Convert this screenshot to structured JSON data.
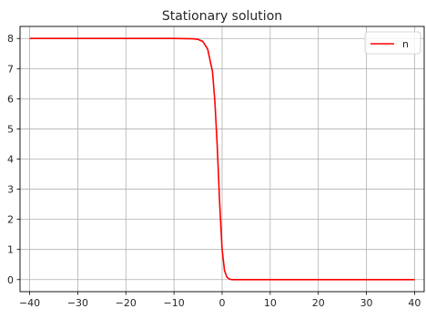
{
  "chart_data": {
    "type": "line",
    "title": "Stationary solution",
    "xlabel": "",
    "ylabel": "",
    "xlim": [
      -42,
      42
    ],
    "ylim": [
      -0.4,
      8.4
    ],
    "x_ticks": [
      -40,
      -30,
      -20,
      -10,
      0,
      10,
      20,
      30,
      40
    ],
    "x_tick_labels": [
      "−40",
      "−30",
      "−20",
      "−10",
      "0",
      "10",
      "20",
      "30",
      "40"
    ],
    "y_ticks": [
      0,
      1,
      2,
      3,
      4,
      5,
      6,
      7,
      8
    ],
    "y_tick_labels": [
      "0",
      "1",
      "2",
      "3",
      "4",
      "5",
      "6",
      "7",
      "8"
    ],
    "grid": true,
    "legend": "top-right",
    "series": [
      {
        "name": "n",
        "color": "#ff0000",
        "x": [
          -40,
          -30,
          -20,
          -10,
          -6,
          -5,
          -4,
          -3,
          -2,
          -1.5,
          -1,
          -0.5,
          0,
          0.5,
          1,
          1.5,
          2,
          3,
          5,
          10,
          20,
          30,
          40
        ],
        "y": [
          8.0,
          8.0,
          8.0,
          8.0,
          7.99,
          7.97,
          7.9,
          7.65,
          6.9,
          5.9,
          4.4,
          2.5,
          1.0,
          0.3,
          0.08,
          0.02,
          0.0,
          0.0,
          0.0,
          0.0,
          0.0,
          0.0,
          0.0
        ]
      }
    ]
  }
}
